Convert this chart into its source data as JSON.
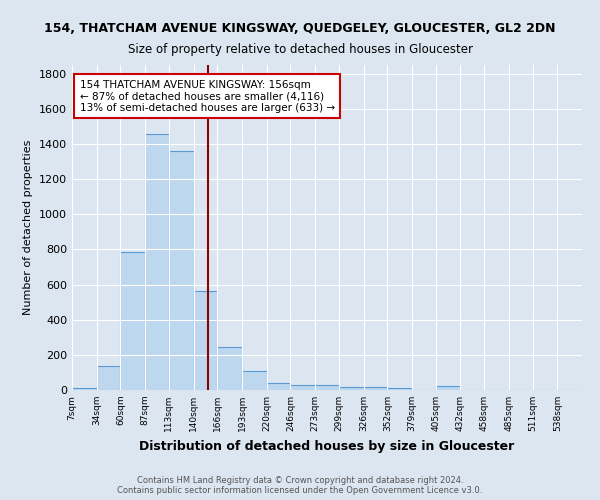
{
  "title1": "154, THATCHAM AVENUE KINGSWAY, QUEDGELEY, GLOUCESTER, GL2 2DN",
  "title2": "Size of property relative to detached houses in Gloucester",
  "xlabel": "Distribution of detached houses by size in Gloucester",
  "ylabel": "Number of detached properties",
  "bin_labels": [
    "7sqm",
    "34sqm",
    "60sqm",
    "87sqm",
    "113sqm",
    "140sqm",
    "166sqm",
    "193sqm",
    "220sqm",
    "246sqm",
    "273sqm",
    "299sqm",
    "326sqm",
    "352sqm",
    "379sqm",
    "405sqm",
    "432sqm",
    "458sqm",
    "485sqm",
    "511sqm",
    "538sqm"
  ],
  "bar_heights": [
    10,
    135,
    785,
    1460,
    1360,
    565,
    245,
    110,
    40,
    28,
    28,
    15,
    18,
    10,
    0,
    22,
    0,
    0,
    0,
    0,
    0
  ],
  "bar_color": "#bdd7ee",
  "bar_edge_color": "#5b9bd5",
  "background_color": "#dce6f1",
  "plot_bg_color": "#dce6f1",
  "grid_color": "#ffffff",
  "vline_x": 156,
  "vline_color": "#8b0000",
  "annotation_text": "154 THATCHAM AVENUE KINGSWAY: 156sqm\n← 87% of detached houses are smaller (4,116)\n13% of semi-detached houses are larger (633) →",
  "annotation_box_color": "#ffffff",
  "annotation_box_edge": "#cc0000",
  "footer1": "Contains HM Land Registry data © Crown copyright and database right 2024.",
  "footer2": "Contains public sector information licensed under the Open Government Licence v3.0.",
  "bin_edges": [
    7,
    34,
    60,
    87,
    113,
    140,
    166,
    193,
    220,
    246,
    273,
    299,
    326,
    352,
    379,
    405,
    432,
    458,
    485,
    511,
    538,
    565
  ],
  "ylim": [
    0,
    1850
  ],
  "yticks": [
    0,
    200,
    400,
    600,
    800,
    1000,
    1200,
    1400,
    1600,
    1800
  ],
  "title1_fontsize": 9,
  "title2_fontsize": 8.5,
  "ylabel_fontsize": 8,
  "xlabel_fontsize": 9,
  "footer_fontsize": 6,
  "annot_fontsize": 7.5
}
